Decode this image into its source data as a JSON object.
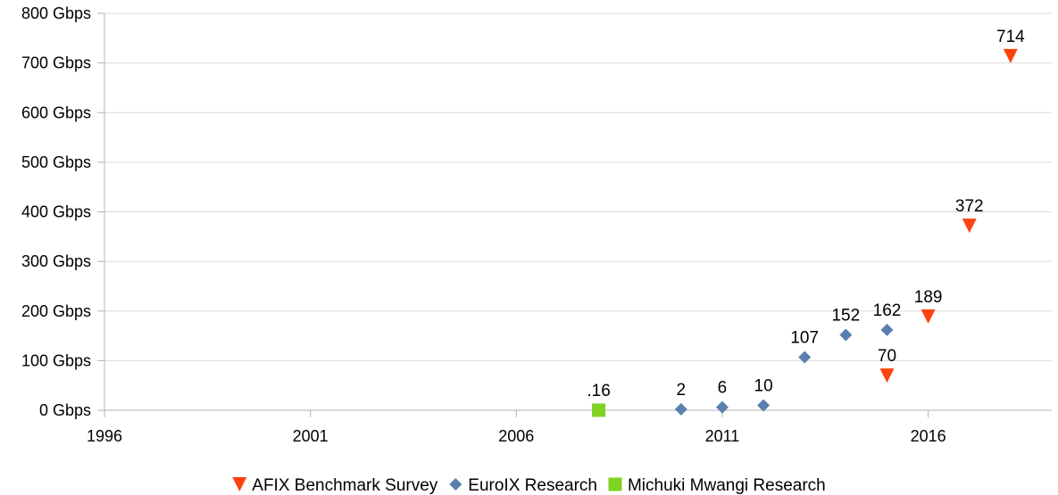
{
  "chart_data": {
    "type": "scatter",
    "title": "",
    "xlabel": "",
    "ylabel": "",
    "xlim": [
      1996,
      2019
    ],
    "ylim": [
      0,
      800
    ],
    "x_ticks": [
      1996,
      2001,
      2006,
      2011,
      2016
    ],
    "x_tick_labels": [
      "1996",
      "2001",
      "2006",
      "2011",
      "2016"
    ],
    "y_ticks": [
      0,
      100,
      200,
      300,
      400,
      500,
      600,
      700,
      800
    ],
    "y_tick_labels": [
      "0 Gbps",
      "100 Gbps",
      "200 Gbps",
      "300 Gbps",
      "400 Gbps",
      "500 Gbps",
      "600 Gbps",
      "700 Gbps",
      "800 Gbps"
    ],
    "grid": "horizontal",
    "legend_position": "bottom",
    "series": [
      {
        "name": "AFIX Benchmark Survey",
        "marker": "triangle-down",
        "color": "#ff420e",
        "points": [
          {
            "x": 2015,
            "y": 70,
            "label": "70"
          },
          {
            "x": 2016,
            "y": 189,
            "label": "189"
          },
          {
            "x": 2017,
            "y": 372,
            "label": "372"
          },
          {
            "x": 2018,
            "y": 714,
            "label": "714"
          }
        ]
      },
      {
        "name": "EuroIX Research",
        "marker": "diamond",
        "color": "#5b7faf",
        "points": [
          {
            "x": 2010,
            "y": 2,
            "label": "2"
          },
          {
            "x": 2011,
            "y": 6,
            "label": "6"
          },
          {
            "x": 2012,
            "y": 10,
            "label": "10"
          },
          {
            "x": 2013,
            "y": 107,
            "label": "107"
          },
          {
            "x": 2014,
            "y": 152,
            "label": "152"
          },
          {
            "x": 2015,
            "y": 162,
            "label": "162"
          }
        ]
      },
      {
        "name": "Michuki Mwangi Research",
        "marker": "square",
        "color": "#7ed321",
        "points": [
          {
            "x": 2008,
            "y": 0.16,
            "label": ".16"
          }
        ]
      }
    ]
  }
}
